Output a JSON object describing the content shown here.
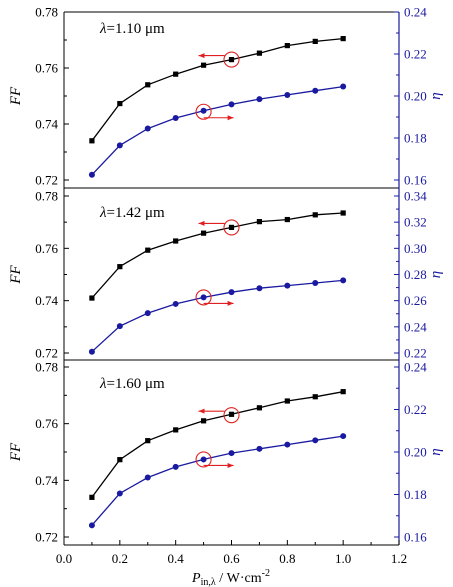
{
  "colors": {
    "left": "#000000",
    "right": "#1a1aa0",
    "marker_ring": "#e02020"
  },
  "figure": {
    "xlabel": {
      "main": "P",
      "sub": "in,λ",
      "rest": " / W·cm",
      "sup": "-2"
    },
    "x_ticks": [
      "0.0",
      "0.2",
      "0.4",
      "0.6",
      "0.8",
      "1.0",
      "1.2"
    ],
    "xlim": [
      0.0,
      1.2
    ]
  },
  "chart_data": [
    {
      "type": "line",
      "label": {
        "lambda": "λ",
        "text": "=1.10 μm"
      },
      "x": [
        0.1,
        0.2,
        0.3,
        0.4,
        0.5,
        0.6,
        0.7,
        0.8,
        0.9,
        1.0
      ],
      "series": [
        {
          "axis": "left",
          "marker": "square",
          "color": "#000000",
          "values": [
            0.734,
            0.7473,
            0.754,
            0.7578,
            0.761,
            0.763,
            0.7653,
            0.768,
            0.7695,
            0.7705
          ]
        },
        {
          "axis": "right",
          "marker": "circle",
          "color": "#1a1aa0",
          "values": [
            0.1625,
            0.1765,
            0.1845,
            0.1895,
            0.193,
            0.196,
            0.1985,
            0.2005,
            0.2025,
            0.2045
          ]
        }
      ],
      "ylabel_left": "FF",
      "ylim_left": [
        0.72,
        0.78
      ],
      "yticks_left": [
        "0.72",
        "0.74",
        "0.76",
        "0.78"
      ],
      "ylabel_right": "η",
      "ylim_right": [
        0.16,
        0.24
      ],
      "yticks_right": [
        "0.16",
        "0.18",
        "0.20",
        "0.22",
        "0.24"
      ],
      "annotations": [
        {
          "ring_x": 0.6,
          "ring_y_left": 0.763,
          "arrow": "left"
        },
        {
          "ring_x": 0.5,
          "ring_y_right": 0.1925,
          "arrow": "right"
        }
      ]
    },
    {
      "type": "line",
      "label": {
        "lambda": "λ",
        "text": "=1.42 μm"
      },
      "x": [
        0.1,
        0.2,
        0.3,
        0.4,
        0.5,
        0.6,
        0.7,
        0.8,
        0.9,
        1.0
      ],
      "series": [
        {
          "axis": "left",
          "marker": "square",
          "color": "#000000",
          "values": [
            0.741,
            0.753,
            0.7593,
            0.7628,
            0.7658,
            0.768,
            0.7702,
            0.771,
            0.7728,
            0.7735
          ]
        },
        {
          "axis": "right",
          "marker": "circle",
          "color": "#1a1aa0",
          "values": [
            0.221,
            0.2405,
            0.2505,
            0.2575,
            0.2625,
            0.2665,
            0.2695,
            0.2715,
            0.2735,
            0.2755
          ]
        }
      ],
      "ylabel_left": "FF",
      "ylim_left": [
        0.72,
        0.78
      ],
      "yticks_left": [
        "0.72",
        "0.74",
        "0.76",
        "0.78"
      ],
      "ylabel_right": "η",
      "ylim_right": [
        0.22,
        0.34
      ],
      "yticks_right": [
        "0.22",
        "0.24",
        "0.26",
        "0.28",
        "0.30",
        "0.32",
        "0.34"
      ],
      "annotations": [
        {
          "ring_x": 0.6,
          "ring_y_left": 0.768,
          "arrow": "left"
        },
        {
          "ring_x": 0.5,
          "ring_y_right": 0.2625,
          "arrow": "right"
        }
      ]
    },
    {
      "type": "line",
      "label": {
        "lambda": "λ",
        "text": "=1.60 μm"
      },
      "x": [
        0.1,
        0.2,
        0.3,
        0.4,
        0.5,
        0.6,
        0.7,
        0.8,
        0.9,
        1.0
      ],
      "series": [
        {
          "axis": "left",
          "marker": "square",
          "color": "#000000",
          "values": [
            0.734,
            0.7473,
            0.754,
            0.7578,
            0.761,
            0.7633,
            0.7656,
            0.768,
            0.7695,
            0.7713
          ]
        },
        {
          "axis": "right",
          "marker": "circle",
          "color": "#1a1aa0",
          "values": [
            0.1655,
            0.1805,
            0.188,
            0.193,
            0.1965,
            0.1995,
            0.2015,
            0.2035,
            0.2055,
            0.2075
          ]
        }
      ],
      "ylabel_left": "FF",
      "ylim_left": [
        0.72,
        0.78
      ],
      "yticks_left": [
        "0.72",
        "0.74",
        "0.76",
        "0.78"
      ],
      "ylabel_right": "η",
      "ylim_right": [
        0.16,
        0.24
      ],
      "yticks_right": [
        "0.16",
        "0.18",
        "0.20",
        "0.22",
        "0.24"
      ],
      "annotations": [
        {
          "ring_x": 0.6,
          "ring_y_left": 0.763,
          "arrow": "left"
        },
        {
          "ring_x": 0.5,
          "ring_y_right": 0.1965,
          "arrow": "right"
        }
      ]
    }
  ]
}
